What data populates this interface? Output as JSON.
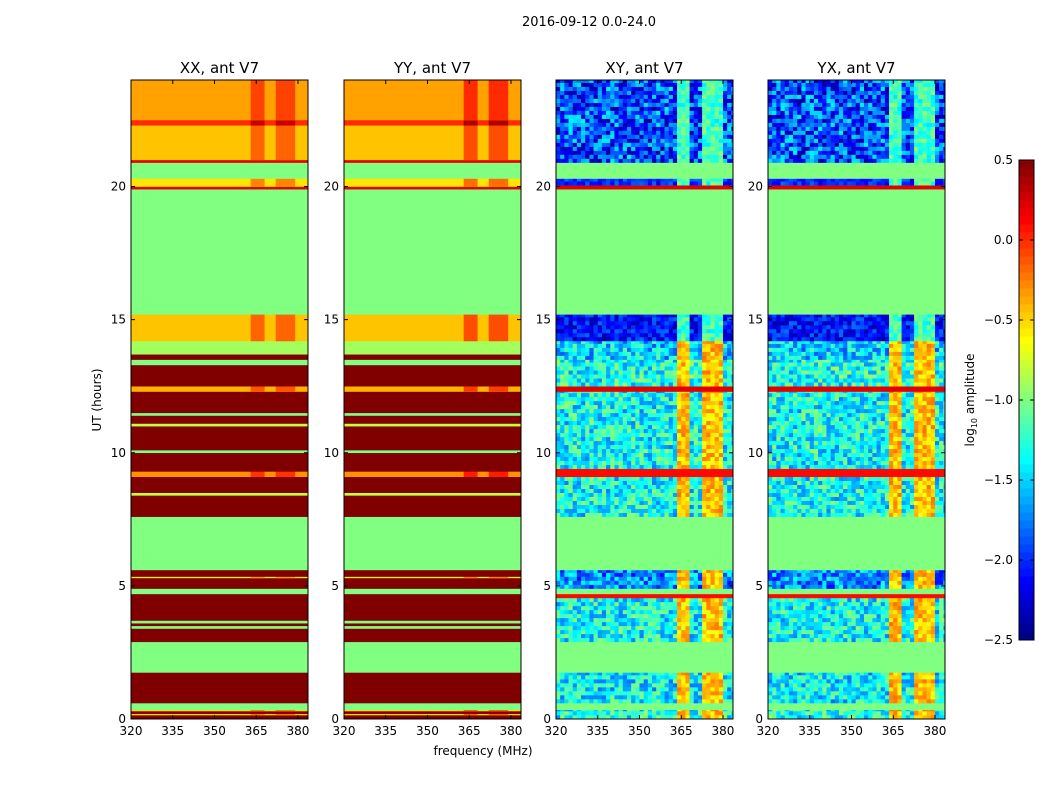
{
  "chart_data": {
    "type": "heatmap",
    "title": "2016-09-12 0.0-24.0",
    "xlabel": "frequency (MHz)",
    "ylabel": "UT (hours)",
    "xlim": [
      320,
      383.6
    ],
    "ylim": [
      0,
      24
    ],
    "xticks": [
      320,
      335,
      350,
      365,
      380
    ],
    "yticks": [
      0,
      5,
      10,
      15,
      20
    ],
    "colorbar": {
      "label_main": "log",
      "label_sub": "10",
      "label_tail": " amplitude",
      "range": [
        -2.5,
        0.5
      ],
      "ticks": [
        "0.5",
        "0.0",
        "−0.5",
        "−1.0",
        "−1.5",
        "−2.0",
        "−2.5"
      ],
      "tick_values": [
        0.5,
        0.0,
        -0.5,
        -1.0,
        -1.5,
        -2.0,
        -2.5
      ],
      "colormap": "jet"
    },
    "hot_columns_mhz": [
      [
        363,
        368
      ],
      [
        372,
        379
      ]
    ],
    "panels": [
      {
        "title": "XX, ant V7",
        "kind": "parallel"
      },
      {
        "title": "YY, ant V7",
        "kind": "parallel"
      },
      {
        "title": "XY, ant V7",
        "kind": "cross"
      },
      {
        "title": "YX, ant V7",
        "kind": "cross"
      }
    ],
    "parallel_bands_hours_value": [
      [
        0,
        0.15,
        0.5
      ],
      [
        0.15,
        0.2,
        -0.5
      ],
      [
        0.2,
        0.3,
        0.5
      ],
      [
        0.3,
        0.35,
        -0.5
      ],
      [
        0.35,
        0.6,
        -1.0
      ],
      [
        0.6,
        1.75,
        0.5
      ],
      [
        1.75,
        2.9,
        -1.0
      ],
      [
        2.9,
        3.4,
        0.5
      ],
      [
        3.4,
        3.5,
        -1.0
      ],
      [
        3.5,
        3.6,
        0.5
      ],
      [
        3.6,
        3.7,
        -1.0
      ],
      [
        3.7,
        4.7,
        0.5
      ],
      [
        4.7,
        4.9,
        -1.0
      ],
      [
        4.9,
        5.3,
        0.5
      ],
      [
        5.3,
        5.35,
        -0.6
      ],
      [
        5.35,
        5.6,
        0.5
      ],
      [
        5.6,
        7.6,
        -1.0
      ],
      [
        7.6,
        8.4,
        0.5
      ],
      [
        8.4,
        8.5,
        -0.8
      ],
      [
        8.5,
        9.1,
        0.5
      ],
      [
        9.1,
        9.3,
        -0.3
      ],
      [
        9.3,
        10.0,
        0.5
      ],
      [
        10.0,
        10.1,
        -1.0
      ],
      [
        10.1,
        11.0,
        0.5
      ],
      [
        11.0,
        11.1,
        -0.8
      ],
      [
        11.1,
        11.4,
        0.5
      ],
      [
        11.4,
        11.5,
        -1.0
      ],
      [
        11.5,
        12.3,
        0.5
      ],
      [
        12.3,
        12.5,
        -0.4
      ],
      [
        12.5,
        13.3,
        0.5
      ],
      [
        13.3,
        13.5,
        -1.0
      ],
      [
        13.5,
        13.7,
        0.5
      ],
      [
        13.7,
        14.2,
        -0.9
      ],
      [
        14.2,
        15.2,
        -0.45
      ],
      [
        15.2,
        19.9,
        -1.0
      ],
      [
        19.9,
        20.0,
        0.2
      ],
      [
        20.0,
        20.3,
        -0.55
      ],
      [
        20.3,
        20.9,
        -1.0
      ],
      [
        20.9,
        21.0,
        0.2
      ],
      [
        21.0,
        22.3,
        -0.45
      ],
      [
        22.3,
        22.5,
        0.0
      ],
      [
        22.5,
        24,
        -0.35
      ]
    ],
    "cross_bands_hours_value_noise": [
      [
        0,
        0.35,
        -1.3,
        0.4
      ],
      [
        0.35,
        0.6,
        -1.0,
        0
      ],
      [
        0.6,
        1.75,
        -1.4,
        0.4
      ],
      [
        1.75,
        2.9,
        -1.0,
        0
      ],
      [
        2.9,
        4.55,
        -1.35,
        0.4
      ],
      [
        4.55,
        4.7,
        0.1,
        0
      ],
      [
        4.7,
        4.9,
        -1.0,
        0
      ],
      [
        4.9,
        5.6,
        -1.7,
        0.4
      ],
      [
        5.6,
        7.6,
        -1.0,
        0
      ],
      [
        7.6,
        9.1,
        -1.35,
        0.4
      ],
      [
        9.1,
        9.4,
        0.1,
        0
      ],
      [
        9.4,
        12.3,
        -1.35,
        0.4
      ],
      [
        12.3,
        12.5,
        0.2,
        0
      ],
      [
        12.5,
        13.5,
        -1.3,
        0.4
      ],
      [
        13.5,
        14.2,
        -1.5,
        0.4
      ],
      [
        14.2,
        15.2,
        -2.1,
        0.3
      ],
      [
        15.2,
        19.9,
        -1.0,
        0
      ],
      [
        19.9,
        20.05,
        0.2,
        0
      ],
      [
        20.05,
        20.3,
        -2.0,
        0.2
      ],
      [
        20.3,
        20.9,
        -1.0,
        0
      ],
      [
        20.9,
        24,
        -1.9,
        0.5
      ]
    ]
  }
}
